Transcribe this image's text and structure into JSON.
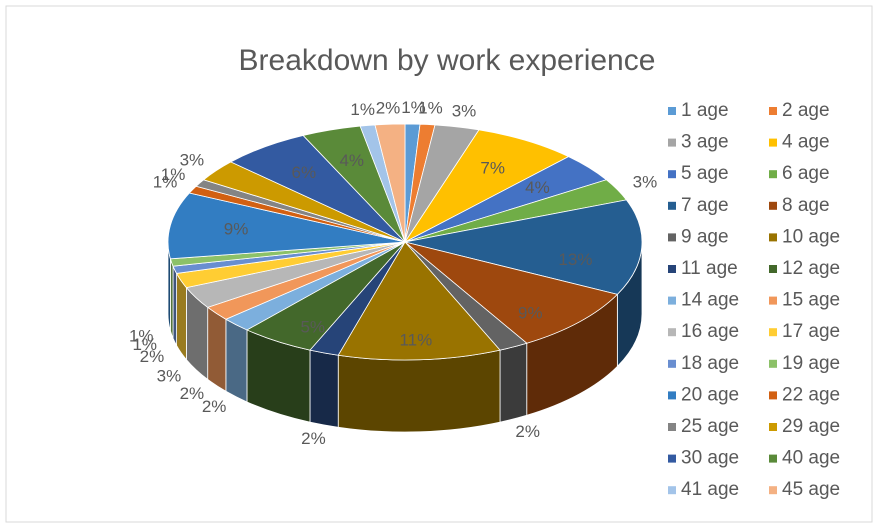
{
  "chart_data": {
    "type": "pie3d",
    "title": "Breakdown by work experience",
    "categories": [
      "1 age",
      "2 age",
      "3 age",
      "4 age",
      "5 age",
      "6 age",
      "7 age",
      "8 age",
      "9 age",
      "10 age",
      "11 age",
      "12 age",
      "14 age",
      "15 age",
      "16 age",
      "17 age",
      "18 age",
      "19 age",
      "20 age",
      "22 age",
      "25 age",
      "29 age",
      "30 age",
      "40 age",
      "41 age",
      "45 age"
    ],
    "values": [
      1,
      1,
      3,
      7,
      4,
      3,
      13,
      9,
      2,
      11,
      2,
      5,
      2,
      2,
      3,
      2,
      1,
      1,
      9,
      1,
      1,
      3,
      6,
      4,
      1,
      2
    ],
    "value_labels": [
      "1%",
      "1%",
      "3%",
      "7%",
      "4%",
      "3%",
      "13%",
      "9%",
      "2%",
      "11%",
      "2%",
      "5%",
      "2%",
      "2%",
      "3%",
      "2%",
      "1%",
      "1%",
      "9%",
      "1%",
      "1%",
      "3%",
      "6%",
      "4%",
      "1%",
      "2%"
    ],
    "colors": [
      "#5b9bd5",
      "#ed7d31",
      "#a5a5a5",
      "#ffc000",
      "#4472c4",
      "#70ad47",
      "#255e91",
      "#9e480e",
      "#636363",
      "#997300",
      "#264478",
      "#43682b",
      "#7cafdd",
      "#f1975a",
      "#b7b7b7",
      "#ffcd33",
      "#698ed0",
      "#8cc168",
      "#327dc2",
      "#d26012",
      "#848484",
      "#cc9a00",
      "#335aa1",
      "#5a8a39",
      "#a3c4e9",
      "#f4b183"
    ],
    "legend": "right"
  }
}
